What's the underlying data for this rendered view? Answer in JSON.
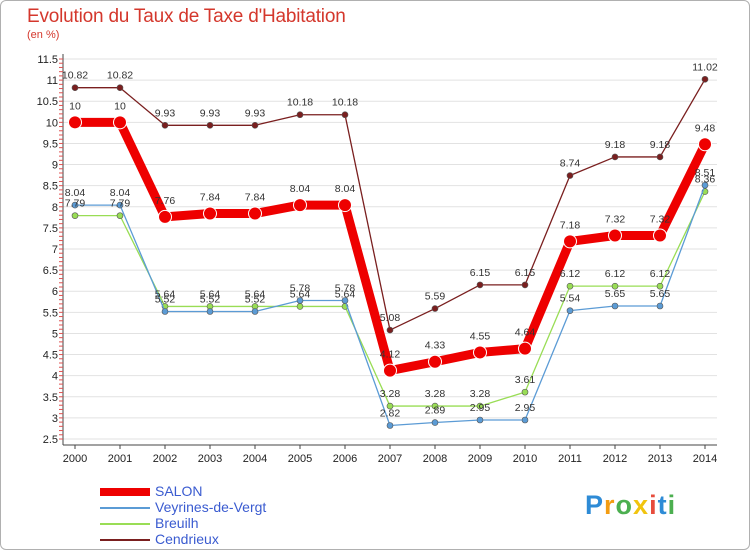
{
  "header": {
    "title": "Evolution du Taux de Taxe d'Habitation",
    "subtitle": "(en %)"
  },
  "chart_data": {
    "type": "line",
    "title": "Evolution du Taux de Taxe d'Habitation",
    "ylabel": "(en %)",
    "categories": [
      "2000",
      "2001",
      "2002",
      "2003",
      "2004",
      "2005",
      "2006",
      "2007",
      "2008",
      "2009",
      "2010",
      "2011",
      "2012",
      "2013",
      "2014"
    ],
    "ylim": [
      2.5,
      11.5
    ],
    "yticks": [
      "2.5",
      "3",
      "3.5",
      "4",
      "4.5",
      "5",
      "5.5",
      "6",
      "6.5",
      "7",
      "7.5",
      "8",
      "8.5",
      "9",
      "9.5",
      "10",
      "10.5",
      "11",
      "11.5"
    ],
    "series": [
      {
        "name": "SALON",
        "color": "#ee0000",
        "values": [
          10,
          10,
          7.76,
          7.84,
          7.84,
          8.04,
          8.04,
          4.12,
          4.33,
          4.55,
          4.64,
          7.18,
          7.32,
          7.32,
          9.48
        ],
        "labels": [
          "10",
          "10",
          "7.76",
          "7.84",
          "7.84",
          "8.04",
          "8.04",
          "4.12",
          "4.33",
          "4.55",
          "4.64",
          "7.18",
          "7.32",
          "7.32",
          "9.48"
        ]
      },
      {
        "name": "Veyrines-de-Vergt",
        "color": "#5b9bd5",
        "values": [
          8.04,
          8.04,
          5.52,
          5.52,
          5.52,
          5.78,
          5.78,
          2.82,
          2.89,
          2.95,
          2.95,
          5.54,
          5.65,
          5.65,
          8.51
        ],
        "labels": [
          "8.04",
          "8.04",
          "5.52",
          "5.52",
          "5.52",
          "5.78",
          "5.78",
          "2.82",
          "2.89",
          "2.95",
          "2.95",
          "5.54",
          "5.65",
          "5.65",
          "8.51"
        ]
      },
      {
        "name": "Breuilh",
        "color": "#99dd55",
        "values": [
          7.79,
          7.79,
          5.64,
          5.64,
          5.64,
          5.64,
          5.64,
          3.28,
          3.28,
          3.28,
          3.61,
          6.12,
          6.12,
          6.12,
          8.36
        ],
        "labels": [
          "7.79",
          "7.79",
          "5.64",
          "5.64",
          "5.64",
          "5.64",
          "5.64",
          "3.28",
          "3.28",
          "3.28",
          "3.61",
          "6.12",
          "6.12",
          "6.12",
          "8.36"
        ]
      },
      {
        "name": "Cendrieux",
        "color": "#7a1f1f",
        "values": [
          10.82,
          10.82,
          9.93,
          9.93,
          9.93,
          10.18,
          10.18,
          5.08,
          5.59,
          6.15,
          6.15,
          8.74,
          9.18,
          9.18,
          11.02
        ],
        "labels": [
          "10.82",
          "10.82",
          "9.93",
          "9.93",
          "9.93",
          "10.18",
          "10.18",
          "5.08",
          "5.59",
          "6.15",
          "6.15",
          "8.74",
          "9.18",
          "9.18",
          "11.02"
        ]
      }
    ],
    "legend": "bottom-left"
  },
  "legend": {
    "items": [
      {
        "label": "SALON"
      },
      {
        "label": "Veyrines-de-Vergt"
      },
      {
        "label": "Breuilh"
      },
      {
        "label": "Cendrieux"
      }
    ]
  },
  "logo": {
    "letters": [
      "P",
      "r",
      "o",
      "x",
      "i",
      "t",
      "i"
    ],
    "colors": [
      "#2e8bd6",
      "#f39c12",
      "#4caf50",
      "#f1c40f",
      "#e74c3c",
      "#2e8bd6",
      "#4caf50"
    ]
  }
}
